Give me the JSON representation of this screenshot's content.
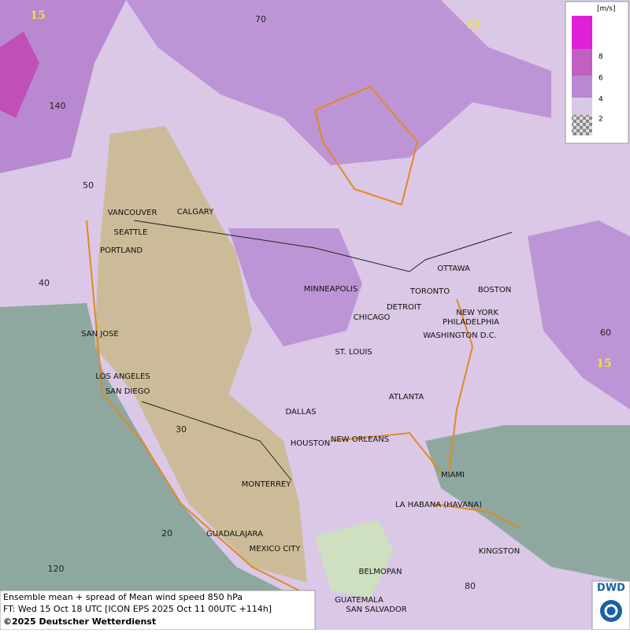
{
  "legend": {
    "unit": "[m/s]",
    "levels": [
      8,
      6,
      4,
      2
    ]
  },
  "contour_labels": [
    "15",
    "15",
    "15"
  ],
  "grid_labels": [
    "70",
    "140",
    "50",
    "40",
    "60",
    "30",
    "20",
    "120",
    "80"
  ],
  "cities": [
    "VANCOUVER",
    "CALGARY",
    "SEATTLE",
    "PORTLAND",
    "MINNEAPOLIS",
    "OTTAWA",
    "TORONTO",
    "DETROIT",
    "BOSTON",
    "CHICAGO",
    "NEW YORK",
    "PHILADELPHIA",
    "WASHINGTON D.C.",
    "SAN JOSE",
    "ST. LOUIS",
    "LOS ANGELES",
    "SAN DIEGO",
    "ATLANTA",
    "DALLAS",
    "HOUSTON",
    "NEW ORLEANS",
    "MIAMI",
    "MONTERREY",
    "LA HABANA (HAVANA)",
    "GUADALAJARA",
    "MEXICO CITY",
    "KINGSTON",
    "BELMOPAN",
    "GUATEMALA",
    "SAN SALVADOR"
  ],
  "footer": {
    "line1": "Ensemble mean + spread of Mean wind speed 850 hPa",
    "line2": "FT: Wed 15 Oct 18 UTC [ICON EPS 2025 Oct 11 00UTC +114h]",
    "line3": "©2025 Deutscher Wetterdienst"
  },
  "logo": "DWD"
}
